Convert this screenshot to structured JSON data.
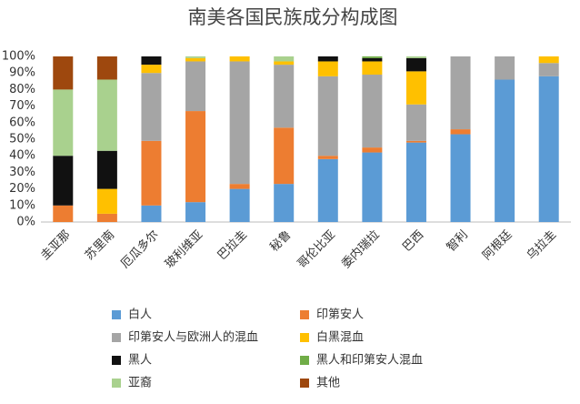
{
  "chart_data": {
    "type": "stacked_bar",
    "title": "南美各国民族成分构成图",
    "categories": [
      "圭亚那",
      "苏里南",
      "厄瓜多尔",
      "玻利维亚",
      "巴拉圭",
      "秘鲁",
      "哥伦比亚",
      "委内瑞拉",
      "巴西",
      "智利",
      "阿根廷",
      "乌拉圭"
    ],
    "series": [
      {
        "name": "白人",
        "color": "#5b9bd5",
        "values": [
          0,
          0,
          10,
          12,
          20,
          23,
          38,
          42,
          48,
          53,
          86,
          88
        ]
      },
      {
        "name": "印第安人",
        "color": "#ed7d31",
        "values": [
          10,
          5,
          39,
          55,
          3,
          34,
          2,
          3,
          1,
          3,
          0,
          0
        ]
      },
      {
        "name": "印第安人与欧洲人的混血",
        "color": "#a5a5a5",
        "values": [
          0,
          0,
          41,
          30,
          74,
          38,
          48,
          44,
          22,
          44,
          14,
          8
        ]
      },
      {
        "name": "白黑混血",
        "color": "#ffc000",
        "values": [
          0,
          15,
          5,
          2,
          3,
          2,
          9,
          8,
          20,
          0,
          0,
          4
        ]
      },
      {
        "name": "黑人",
        "color": "#111111",
        "values": [
          30,
          23,
          5,
          0,
          0,
          0,
          3,
          2,
          8,
          0,
          0,
          0
        ]
      },
      {
        "name": "黑人和印第安人混血",
        "color": "#70ad47",
        "values": [
          0,
          0,
          0,
          0,
          0,
          0,
          0,
          1,
          0,
          0,
          0,
          0
        ]
      },
      {
        "name": "亚裔",
        "color": "#a9d18e",
        "values": [
          40,
          43,
          0,
          1,
          0,
          3,
          0,
          0,
          1,
          0,
          0,
          0
        ]
      },
      {
        "name": "其他",
        "color": "#9e480e",
        "values": [
          20,
          14,
          0,
          0,
          0,
          0,
          0,
          0,
          0,
          0,
          0,
          0
        ]
      }
    ],
    "ylim": [
      0,
      100
    ],
    "yticks": [
      {
        "value": 0,
        "label": "0%"
      },
      {
        "value": 10,
        "label": "10%"
      },
      {
        "value": 20,
        "label": "20%"
      },
      {
        "value": 30,
        "label": "30%"
      },
      {
        "value": 40,
        "label": "40%"
      },
      {
        "value": 50,
        "label": "50%"
      },
      {
        "value": 60,
        "label": "60%"
      },
      {
        "value": 70,
        "label": "70%"
      },
      {
        "value": 80,
        "label": "80%"
      },
      {
        "value": 90,
        "label": "90%"
      },
      {
        "value": 100,
        "label": "100%"
      }
    ],
    "grid": false,
    "legend": "bottom"
  }
}
